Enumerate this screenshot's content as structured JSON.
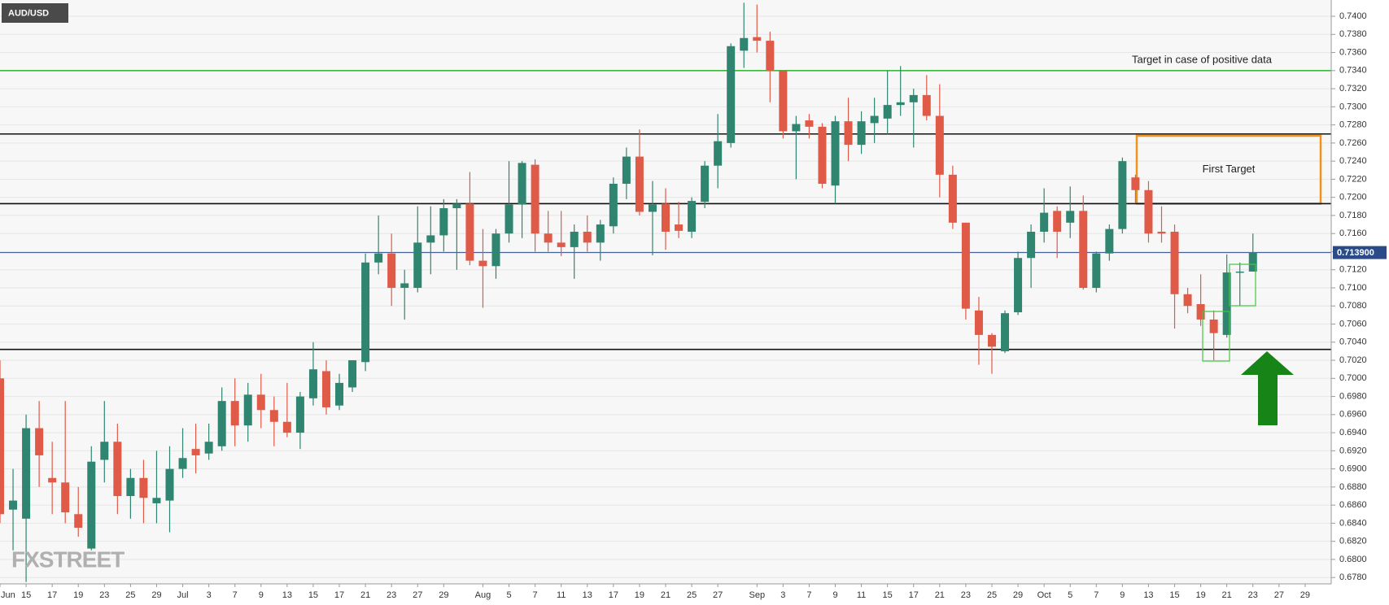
{
  "chart_data": {
    "type": "candlestick",
    "symbol": "AUD/USD",
    "watermark": "FXSTREET",
    "categories": [
      "Jun",
      null,
      "15",
      null,
      "17",
      null,
      "19",
      null,
      "23",
      null,
      "25",
      null,
      "29",
      null,
      "Jul",
      null,
      "3",
      null,
      "7",
      null,
      "9",
      null,
      "13",
      null,
      "15",
      null,
      "17",
      null,
      "21",
      null,
      "23",
      null,
      "27",
      null,
      "29",
      null,
      null,
      "Aug",
      null,
      "5",
      null,
      "7",
      null,
      "11",
      null,
      "13",
      null,
      "17",
      null,
      "19",
      null,
      "21",
      null,
      "25",
      null,
      "27",
      null,
      null,
      "Sep",
      null,
      "3",
      null,
      "7",
      null,
      "9",
      null,
      "11",
      null,
      "15",
      null,
      "17",
      null,
      "21",
      null,
      "23",
      null,
      "25",
      null,
      "29",
      null,
      "Oct",
      null,
      "5",
      null,
      "7",
      null,
      "9",
      null,
      "13",
      null,
      "15",
      null,
      "19",
      null,
      "21",
      null,
      "23",
      null,
      "27",
      null,
      "29",
      null
    ],
    "open": [
      0.7,
      0.6855,
      0.6845,
      0.6945,
      0.689,
      0.6885,
      0.685,
      0.6812,
      0.691,
      0.693,
      0.687,
      0.689,
      0.6862,
      0.6865,
      0.69,
      0.6922,
      0.6917,
      0.6925,
      0.6975,
      0.6948,
      0.6982,
      0.6965,
      0.6952,
      0.694,
      0.6978,
      0.7008,
      0.697,
      0.699,
      0.7018,
      0.7128,
      0.7138,
      0.71,
      0.71,
      0.715,
      0.7158,
      0.7188,
      0.7193,
      0.713,
      0.7124,
      0.716,
      0.7192,
      0.7236,
      0.716,
      0.715,
      0.7145,
      0.7162,
      0.715,
      0.7168,
      0.7215,
      0.7245,
      0.7184,
      0.7193,
      0.717,
      0.7162,
      0.7195,
      0.7235,
      0.726,
      0.7362,
      0.7377,
      0.7373,
      0.734,
      0.7273,
      0.7285,
      0.7278,
      0.7213,
      0.7284,
      0.7258,
      0.7282,
      0.7287,
      0.7302,
      0.7305,
      0.7313,
      0.729,
      0.7225,
      0.7172,
      0.7075,
      0.7048,
      0.703,
      0.7073,
      0.7133,
      0.7162,
      0.7185,
      0.7172,
      0.7185,
      0.71,
      0.7138,
      0.7165,
      0.7222,
      0.7208,
      0.7162,
      0.7162,
      0.7093,
      0.7082,
      0.7065,
      0.7048,
      0.7117,
      0.7118,
      null,
      null,
      null,
      null,
      null
    ],
    "high": [
      0.702,
      0.69,
      0.696,
      0.6975,
      0.693,
      0.6975,
      0.688,
      0.6925,
      0.6975,
      0.695,
      0.69,
      0.691,
      0.692,
      0.6925,
      0.6945,
      0.695,
      0.695,
      0.699,
      0.7,
      0.6995,
      0.7005,
      0.698,
      0.6995,
      0.6985,
      0.704,
      0.702,
      0.7005,
      0.702,
      0.7138,
      0.718,
      0.716,
      0.712,
      0.719,
      0.719,
      0.7198,
      0.7198,
      0.7228,
      0.7165,
      0.7165,
      0.724,
      0.724,
      0.7242,
      0.7185,
      0.7185,
      0.717,
      0.718,
      0.7175,
      0.7222,
      0.7255,
      0.7275,
      0.7218,
      0.721,
      0.7195,
      0.72,
      0.724,
      0.7292,
      0.737,
      0.7415,
      0.7413,
      0.7383,
      0.734,
      0.729,
      0.7292,
      0.7282,
      0.729,
      0.731,
      0.7295,
      0.731,
      0.734,
      0.7345,
      0.732,
      0.7335,
      0.7325,
      0.7235,
      0.7172,
      0.709,
      0.705,
      0.7075,
      0.714,
      0.717,
      0.721,
      0.719,
      0.7212,
      0.7202,
      0.714,
      0.717,
      0.7244,
      0.7225,
      0.7218,
      0.719,
      0.717,
      0.71,
      0.7115,
      0.7075,
      0.7137,
      0.7128,
      0.716,
      null,
      null,
      null,
      null,
      null
    ],
    "low": [
      0.684,
      0.681,
      0.6775,
      0.688,
      0.685,
      0.684,
      0.6825,
      0.681,
      0.6885,
      0.685,
      0.6845,
      0.684,
      0.684,
      0.683,
      0.689,
      0.6895,
      0.691,
      0.692,
      0.6925,
      0.693,
      0.6945,
      0.6925,
      0.6935,
      0.6922,
      0.697,
      0.696,
      0.6965,
      0.6985,
      0.7008,
      0.7115,
      0.708,
      0.7065,
      0.7095,
      0.7115,
      0.714,
      0.712,
      0.7125,
      0.7078,
      0.711,
      0.715,
      0.7155,
      0.714,
      0.714,
      0.7135,
      0.711,
      0.714,
      0.713,
      0.716,
      0.7198,
      0.718,
      0.7136,
      0.7142,
      0.7155,
      0.7155,
      0.7188,
      0.721,
      0.7255,
      0.7343,
      0.736,
      0.7305,
      0.7265,
      0.722,
      0.7265,
      0.721,
      0.7193,
      0.724,
      0.7248,
      0.726,
      0.727,
      0.729,
      0.7255,
      0.7285,
      0.72,
      0.7165,
      0.7065,
      0.7015,
      0.7005,
      0.7028,
      0.707,
      0.71,
      0.715,
      0.7133,
      0.7155,
      0.7098,
      0.7095,
      0.713,
      0.716,
      0.7194,
      0.715,
      0.715,
      0.7055,
      0.7072,
      0.7058,
      0.702,
      0.7045,
      0.708,
      0.7118,
      null,
      null,
      null,
      null,
      null
    ],
    "close": [
      0.685,
      0.6865,
      0.6945,
      0.6915,
      0.6885,
      0.6852,
      0.6835,
      0.6908,
      0.693,
      0.687,
      0.689,
      0.6868,
      0.6868,
      0.69,
      0.6912,
      0.6915,
      0.693,
      0.6975,
      0.6948,
      0.6982,
      0.6965,
      0.6952,
      0.694,
      0.698,
      0.701,
      0.6968,
      0.6995,
      0.702,
      0.7128,
      0.7138,
      0.71,
      0.7105,
      0.715,
      0.7158,
      0.7188,
      0.7193,
      0.713,
      0.7124,
      0.716,
      0.7192,
      0.7238,
      0.716,
      0.715,
      0.7145,
      0.7162,
      0.715,
      0.717,
      0.7215,
      0.7245,
      0.7184,
      0.7192,
      0.7162,
      0.7163,
      0.7196,
      0.7235,
      0.7262,
      0.7367,
      0.7376,
      0.7373,
      0.734,
      0.7273,
      0.7281,
      0.7278,
      0.7215,
      0.7284,
      0.7258,
      0.7284,
      0.729,
      0.7302,
      0.7305,
      0.7313,
      0.729,
      0.7225,
      0.7172,
      0.7077,
      0.7048,
      0.7035,
      0.7072,
      0.7133,
      0.7162,
      0.7183,
      0.7162,
      0.7185,
      0.71,
      0.7138,
      0.7165,
      0.724,
      0.7208,
      0.716,
      0.716,
      0.7093,
      0.708,
      0.7065,
      0.705,
      0.7117,
      0.7118,
      0.7139,
      null,
      null,
      null,
      null,
      null
    ],
    "up_color": "#2f8570",
    "down_color": "#e05a48",
    "ylim": [
      0.6773,
      0.7418
    ],
    "yticks": [
      {
        "value": 0.678,
        "label": "0.6780"
      },
      {
        "value": 0.68,
        "label": "0.6800"
      },
      {
        "value": 0.682,
        "label": "0.6820"
      },
      {
        "value": 0.684,
        "label": "0.6840"
      },
      {
        "value": 0.686,
        "label": "0.6860"
      },
      {
        "value": 0.688,
        "label": "0.6880"
      },
      {
        "value": 0.69,
        "label": "0.6900"
      },
      {
        "value": 0.692,
        "label": "0.6920"
      },
      {
        "value": 0.694,
        "label": "0.6940"
      },
      {
        "value": 0.696,
        "label": "0.6960"
      },
      {
        "value": 0.698,
        "label": "0.6980"
      },
      {
        "value": 0.7,
        "label": "0.7000"
      },
      {
        "value": 0.702,
        "label": "0.7020"
      },
      {
        "value": 0.704,
        "label": "0.7040"
      },
      {
        "value": 0.706,
        "label": "0.7060"
      },
      {
        "value": 0.708,
        "label": "0.7080"
      },
      {
        "value": 0.71,
        "label": "0.7100"
      },
      {
        "value": 0.712,
        "label": "0.7120"
      },
      {
        "value": 0.714,
        "label": "0.7140"
      },
      {
        "value": 0.716,
        "label": "0.7160"
      },
      {
        "value": 0.718,
        "label": "0.7180"
      },
      {
        "value": 0.72,
        "label": "0.7200"
      },
      {
        "value": 0.722,
        "label": "0.7220"
      },
      {
        "value": 0.724,
        "label": "0.7240"
      },
      {
        "value": 0.726,
        "label": "0.7260"
      },
      {
        "value": 0.728,
        "label": "0.7280"
      },
      {
        "value": 0.73,
        "label": "0.7300"
      },
      {
        "value": 0.732,
        "label": "0.7320"
      },
      {
        "value": 0.734,
        "label": "0.7340"
      },
      {
        "value": 0.736,
        "label": "0.7360"
      },
      {
        "value": 0.738,
        "label": "0.7380"
      },
      {
        "value": 0.74,
        "label": "0.7400"
      }
    ],
    "grid": true,
    "levels": [
      {
        "value": 0.734,
        "color": "#3cb83c",
        "label": "Target in case of positive data"
      },
      {
        "value": 0.727,
        "color": "#111111"
      },
      {
        "value": 0.7193,
        "color": "#111111"
      },
      {
        "value": 0.7032,
        "color": "#111111"
      }
    ],
    "first_target": {
      "label": "First Target",
      "top": 0.7268,
      "bottom": 0.7193,
      "color": "#f0931a"
    },
    "last_price": {
      "value": 0.7139,
      "label": "0.713900",
      "color": "#2b4a88"
    }
  }
}
